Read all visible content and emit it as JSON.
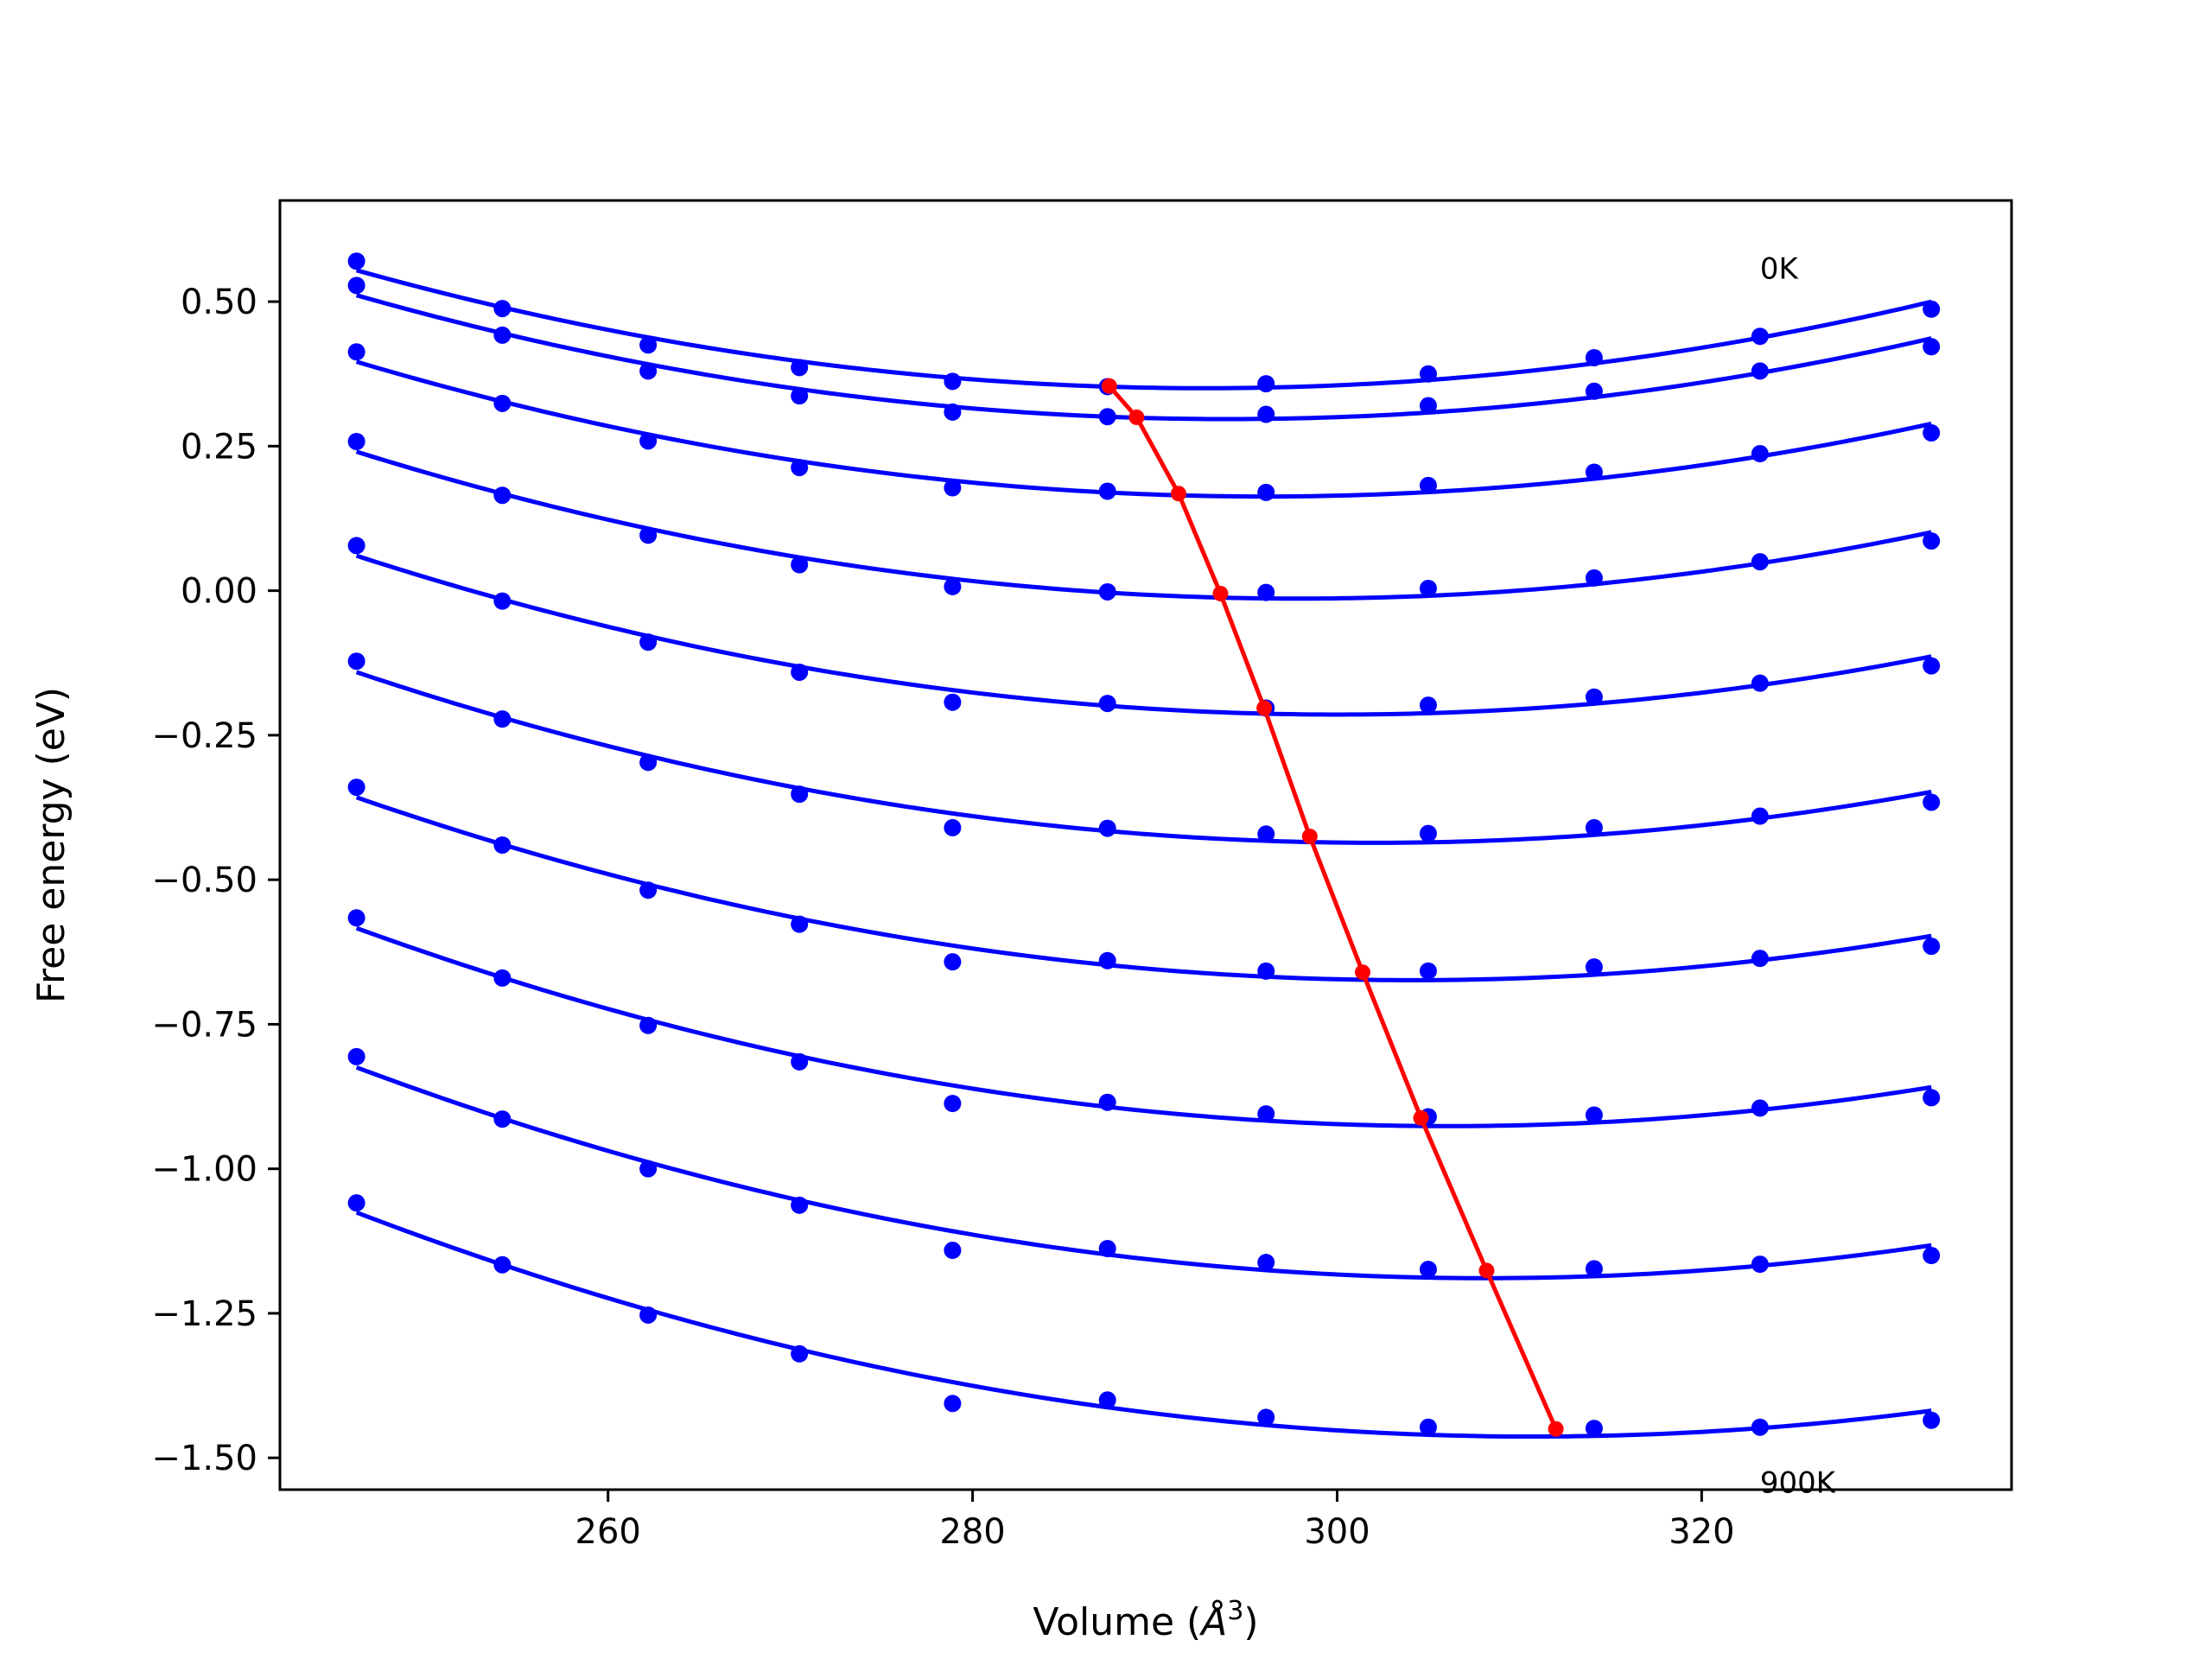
{
  "chart_data": {
    "type": "line",
    "xlabel_main": "Volume (",
    "xlabel_unit": "Å",
    "xlabel_exp": "3",
    "xlabel_close": ")",
    "ylabel": "Free energy (eV)",
    "xlim": [
      242,
      337
    ],
    "ylim": [
      -1.555,
      0.675
    ],
    "xticks": [
      260,
      280,
      300,
      320
    ],
    "yticks": [
      0.5,
      0.25,
      0.0,
      -0.25,
      -0.5,
      -0.75,
      -1.0,
      -1.25,
      -1.5
    ],
    "xtick_labels": [
      "260",
      "280",
      "300",
      "320"
    ],
    "ytick_labels": [
      "0.50",
      "0.25",
      "0.00",
      "−0.25",
      "−0.50",
      "−0.75",
      "−1.00",
      "−1.25",
      "−1.50"
    ],
    "annotations": [
      {
        "text": "0K",
        "x": 323.2,
        "y": 0.54
      },
      {
        "text": "900K",
        "x": 323.2,
        "y": -1.56
      }
    ],
    "colors": {
      "data": "#0000ff",
      "min_line": "#ff0000"
    },
    "volumes": [
      246.2,
      254.2,
      262.2,
      270.5,
      278.9,
      287.4,
      296.1,
      305.0,
      314.1,
      323.2,
      332.6
    ],
    "series": [
      {
        "values": [
          0.57,
          0.488,
          0.425,
          0.386,
          0.362,
          0.353,
          0.358,
          0.375,
          0.403,
          0.44,
          0.487
        ]
      },
      {
        "values": [
          0.528,
          0.442,
          0.38,
          0.337,
          0.309,
          0.301,
          0.305,
          0.32,
          0.345,
          0.38,
          0.422
        ]
      },
      {
        "values": [
          0.413,
          0.324,
          0.259,
          0.213,
          0.178,
          0.172,
          0.17,
          0.182,
          0.205,
          0.237,
          0.273
        ]
      },
      {
        "values": [
          0.258,
          0.165,
          0.096,
          0.045,
          0.007,
          -0.002,
          -0.003,
          0.004,
          0.022,
          0.05,
          0.086
        ]
      },
      {
        "values": [
          0.078,
          -0.018,
          -0.089,
          -0.141,
          -0.193,
          -0.195,
          -0.203,
          -0.198,
          -0.184,
          -0.16,
          -0.13
        ]
      },
      {
        "values": [
          -0.122,
          -0.222,
          -0.297,
          -0.352,
          -0.41,
          -0.411,
          -0.421,
          -0.42,
          -0.41,
          -0.39,
          -0.366
        ]
      },
      {
        "values": [
          -0.34,
          -0.44,
          -0.518,
          -0.577,
          -0.642,
          -0.64,
          -0.658,
          -0.658,
          -0.651,
          -0.636,
          -0.615
        ]
      },
      {
        "values": [
          -0.566,
          -0.67,
          -0.752,
          -0.815,
          -0.887,
          -0.885,
          -0.905,
          -0.91,
          -0.907,
          -0.895,
          -0.877
        ]
      },
      {
        "values": [
          -0.806,
          -0.914,
          -1.0,
          -1.063,
          -1.141,
          -1.138,
          -1.162,
          -1.174,
          -1.173,
          -1.165,
          -1.15
        ]
      },
      {
        "values": [
          -1.059,
          -1.166,
          -1.253,
          -1.32,
          -1.406,
          -1.4,
          -1.43,
          -1.447,
          -1.449,
          -1.447,
          -1.435
        ]
      }
    ],
    "minima": {
      "x": [
        287.5,
        289.0,
        291.3,
        293.6,
        296.0,
        298.5,
        301.4,
        304.6,
        308.2,
        312.0
      ],
      "y": [
        0.354,
        0.3,
        0.168,
        -0.005,
        -0.203,
        -0.425,
        -0.66,
        -0.912,
        -1.176,
        -1.45
      ]
    }
  }
}
